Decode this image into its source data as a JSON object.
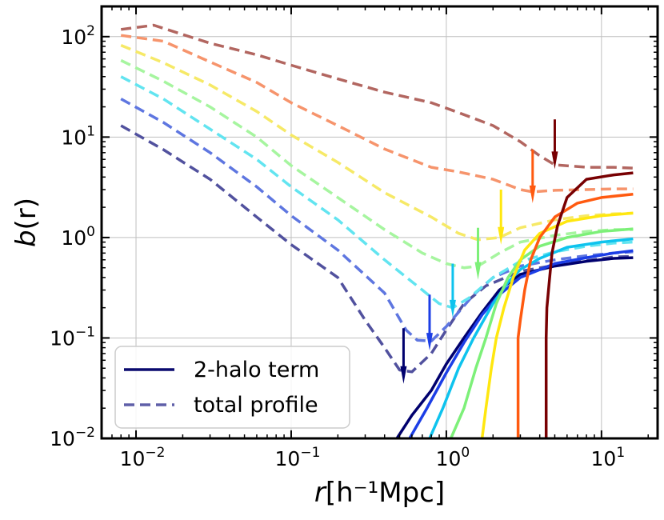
{
  "chart_data": {
    "type": "line",
    "xscale": "log",
    "yscale": "log",
    "xlim": [
      0.006,
      23
    ],
    "ylim": [
      0.01,
      200
    ],
    "grid": true,
    "legend_placement": "lower-left",
    "xlabel": {
      "italic": "r",
      "unit": "[h⁻¹Mpc]"
    },
    "ylabel": {
      "italic": "b",
      "rest": "(r)"
    },
    "x_ticks": [
      {
        "value": 0.01,
        "base": "10",
        "exp": "−2"
      },
      {
        "value": 0.1,
        "base": "10",
        "exp": "−1"
      },
      {
        "value": 1,
        "base": "10",
        "exp": "0"
      },
      {
        "value": 10,
        "base": "10",
        "exp": "1"
      }
    ],
    "y_ticks": [
      {
        "value": 0.01,
        "base": "10",
        "exp": "−2"
      },
      {
        "value": 0.1,
        "base": "10",
        "exp": "−1"
      },
      {
        "value": 1,
        "base": "10",
        "exp": "0"
      },
      {
        "value": 10,
        "base": "10",
        "exp": "1"
      },
      {
        "value": 100,
        "base": "10",
        "exp": "2"
      }
    ],
    "legend": [
      {
        "label": "2-halo term",
        "style": "solid",
        "color": "#0a0a6e"
      },
      {
        "label": "total profile",
        "style": "dashed",
        "color": "#5f5fa8"
      }
    ],
    "total_profiles": [
      {
        "color": "#51519e",
        "points": [
          [
            0.008,
            13
          ],
          [
            0.015,
            7.5
          ],
          [
            0.03,
            3.8
          ],
          [
            0.06,
            1.6
          ],
          [
            0.1,
            0.85
          ],
          [
            0.2,
            0.4
          ],
          [
            0.3,
            0.15
          ],
          [
            0.4,
            0.08
          ],
          [
            0.5,
            0.048
          ],
          [
            0.6,
            0.046
          ],
          [
            0.8,
            0.07
          ],
          [
            1.0,
            0.12
          ],
          [
            1.3,
            0.22
          ],
          [
            1.8,
            0.33
          ],
          [
            3,
            0.46
          ],
          [
            5,
            0.53
          ],
          [
            8,
            0.59
          ],
          [
            12,
            0.64
          ],
          [
            16,
            0.65
          ]
        ]
      },
      {
        "color": "#5e76e0",
        "points": [
          [
            0.008,
            24
          ],
          [
            0.015,
            14
          ],
          [
            0.03,
            7
          ],
          [
            0.06,
            3.2
          ],
          [
            0.1,
            1.65
          ],
          [
            0.2,
            0.75
          ],
          [
            0.4,
            0.28
          ],
          [
            0.55,
            0.12
          ],
          [
            0.65,
            0.095
          ],
          [
            0.8,
            0.093
          ],
          [
            1.0,
            0.13
          ],
          [
            1.5,
            0.27
          ],
          [
            2,
            0.4
          ],
          [
            3,
            0.52
          ],
          [
            5,
            0.6
          ],
          [
            8,
            0.66
          ],
          [
            12,
            0.7
          ],
          [
            16,
            0.72
          ]
        ]
      },
      {
        "color": "#62e4f0",
        "points": [
          [
            0.008,
            40
          ],
          [
            0.015,
            24
          ],
          [
            0.03,
            12
          ],
          [
            0.06,
            6
          ],
          [
            0.1,
            3.2
          ],
          [
            0.2,
            1.5
          ],
          [
            0.4,
            0.6
          ],
          [
            0.7,
            0.3
          ],
          [
            0.9,
            0.22
          ],
          [
            1.1,
            0.2
          ],
          [
            1.4,
            0.25
          ],
          [
            2,
            0.4
          ],
          [
            3,
            0.58
          ],
          [
            5,
            0.72
          ],
          [
            8,
            0.82
          ],
          [
            12,
            0.88
          ],
          [
            16,
            0.9
          ]
        ]
      },
      {
        "color": "#a6f59f",
        "points": [
          [
            0.008,
            58
          ],
          [
            0.015,
            36
          ],
          [
            0.03,
            20
          ],
          [
            0.06,
            10
          ],
          [
            0.1,
            5.2
          ],
          [
            0.2,
            2.5
          ],
          [
            0.4,
            1.2
          ],
          [
            0.7,
            0.7
          ],
          [
            1.0,
            0.55
          ],
          [
            1.3,
            0.5
          ],
          [
            1.6,
            0.52
          ],
          [
            2.2,
            0.7
          ],
          [
            3,
            0.9
          ],
          [
            5,
            1.05
          ],
          [
            8,
            1.15
          ],
          [
            12,
            1.2
          ],
          [
            16,
            1.2
          ]
        ]
      },
      {
        "color": "#f6e967",
        "points": [
          [
            0.008,
            82
          ],
          [
            0.015,
            55
          ],
          [
            0.03,
            33
          ],
          [
            0.06,
            18
          ],
          [
            0.1,
            10.5
          ],
          [
            0.2,
            5.6
          ],
          [
            0.4,
            2.8
          ],
          [
            0.8,
            1.6
          ],
          [
            1.2,
            1.1
          ],
          [
            1.6,
            0.95
          ],
          [
            2.2,
            1.0
          ],
          [
            3,
            1.25
          ],
          [
            5,
            1.5
          ],
          [
            8,
            1.65
          ],
          [
            12,
            1.72
          ],
          [
            16,
            1.75
          ]
        ]
      },
      {
        "color": "#f6946c",
        "points": [
          [
            0.008,
            103
          ],
          [
            0.015,
            90
          ],
          [
            0.03,
            56
          ],
          [
            0.06,
            35
          ],
          [
            0.1,
            22
          ],
          [
            0.2,
            13
          ],
          [
            0.4,
            7.6
          ],
          [
            0.8,
            5
          ],
          [
            1.2,
            4.5
          ],
          [
            2,
            3.8
          ],
          [
            3,
            3.0
          ],
          [
            3.6,
            2.85
          ],
          [
            5,
            2.95
          ],
          [
            8,
            3.0
          ],
          [
            12,
            3.05
          ],
          [
            16,
            3.05
          ]
        ]
      },
      {
        "color": "#b26660",
        "points": [
          [
            0.008,
            118
          ],
          [
            0.013,
            130
          ],
          [
            0.03,
            86
          ],
          [
            0.06,
            66
          ],
          [
            0.1,
            52
          ],
          [
            0.2,
            38
          ],
          [
            0.4,
            28
          ],
          [
            0.8,
            22
          ],
          [
            1.2,
            17.5
          ],
          [
            2,
            13
          ],
          [
            3,
            9
          ],
          [
            4,
            6.5
          ],
          [
            5,
            5.3
          ],
          [
            8,
            5.0
          ],
          [
            12,
            5.0
          ],
          [
            16,
            4.9
          ]
        ]
      }
    ],
    "two_halo_terms": [
      {
        "color": "#00006e",
        "points": [
          [
            0.48,
            0.01
          ],
          [
            0.6,
            0.017
          ],
          [
            0.8,
            0.03
          ],
          [
            1.0,
            0.055
          ],
          [
            1.3,
            0.1
          ],
          [
            1.7,
            0.18
          ],
          [
            2.2,
            0.3
          ],
          [
            3,
            0.43
          ],
          [
            5,
            0.52
          ],
          [
            8,
            0.58
          ],
          [
            12,
            0.62
          ],
          [
            16,
            0.63
          ]
        ]
      },
      {
        "color": "#1c3ee6",
        "points": [
          [
            0.58,
            0.01
          ],
          [
            0.75,
            0.02
          ],
          [
            1.0,
            0.045
          ],
          [
            1.3,
            0.09
          ],
          [
            1.7,
            0.17
          ],
          [
            2.2,
            0.27
          ],
          [
            3,
            0.4
          ],
          [
            5,
            0.55
          ],
          [
            8,
            0.63
          ],
          [
            12,
            0.7
          ],
          [
            16,
            0.74
          ]
        ]
      },
      {
        "color": "#0ec3ee",
        "points": [
          [
            0.78,
            0.01
          ],
          [
            0.95,
            0.02
          ],
          [
            1.2,
            0.05
          ],
          [
            1.5,
            0.1
          ],
          [
            2,
            0.22
          ],
          [
            2.5,
            0.36
          ],
          [
            3,
            0.48
          ],
          [
            4,
            0.62
          ],
          [
            6,
            0.8
          ],
          [
            10,
            0.9
          ],
          [
            16,
            0.97
          ]
        ]
      },
      {
        "color": "#7df079",
        "points": [
          [
            1.07,
            0.01
          ],
          [
            1.3,
            0.02
          ],
          [
            1.55,
            0.05
          ],
          [
            1.8,
            0.1
          ],
          [
            2.1,
            0.22
          ],
          [
            2.5,
            0.4
          ],
          [
            3,
            0.6
          ],
          [
            4,
            0.82
          ],
          [
            6,
            1.0
          ],
          [
            10,
            1.15
          ],
          [
            16,
            1.22
          ]
        ]
      },
      {
        "color": "#ffe70f",
        "points": [
          [
            1.7,
            0.01
          ],
          [
            1.8,
            0.02
          ],
          [
            1.95,
            0.05
          ],
          [
            2.1,
            0.1
          ],
          [
            2.35,
            0.2
          ],
          [
            2.7,
            0.4
          ],
          [
            3.2,
            0.75
          ],
          [
            4,
            1.1
          ],
          [
            6,
            1.45
          ],
          [
            10,
            1.65
          ],
          [
            16,
            1.75
          ]
        ]
      },
      {
        "color": "#ff5a10",
        "points": [
          [
            2.9,
            0.01
          ],
          [
            2.9,
            0.1
          ],
          [
            3.0,
            0.15
          ],
          [
            3.2,
            0.3
          ],
          [
            3.5,
            0.6
          ],
          [
            4,
            1.0
          ],
          [
            5,
            1.6
          ],
          [
            7,
            2.2
          ],
          [
            10,
            2.5
          ],
          [
            16,
            2.7
          ]
        ]
      },
      {
        "color": "#780002",
        "points": [
          [
            4.4,
            0.01
          ],
          [
            4.4,
            0.1
          ],
          [
            4.45,
            0.2
          ],
          [
            4.6,
            0.35
          ],
          [
            4.8,
            0.7
          ],
          [
            5.2,
            1.3
          ],
          [
            6,
            2.5
          ],
          [
            8,
            3.8
          ],
          [
            12,
            4.2
          ],
          [
            16,
            4.4
          ]
        ]
      }
    ],
    "arrows": [
      {
        "color": "#00006e",
        "x": 0.53,
        "y_top": 0.125,
        "y_tip": 0.035
      },
      {
        "color": "#1c3ee6",
        "x": 0.78,
        "y_top": 0.27,
        "y_tip": 0.075
      },
      {
        "color": "#0ec3ee",
        "x": 1.1,
        "y_top": 0.55,
        "y_tip": 0.16
      },
      {
        "color": "#7df079",
        "x": 1.6,
        "y_top": 1.25,
        "y_tip": 0.38
      },
      {
        "color": "#ffe70f",
        "x": 2.25,
        "y_top": 3.0,
        "y_tip": 0.85
      },
      {
        "color": "#ff5a10",
        "x": 3.6,
        "y_top": 7.5,
        "y_tip": 2.2
      },
      {
        "color": "#780002",
        "x": 5.0,
        "y_top": 15,
        "y_tip": 4.8
      }
    ]
  }
}
